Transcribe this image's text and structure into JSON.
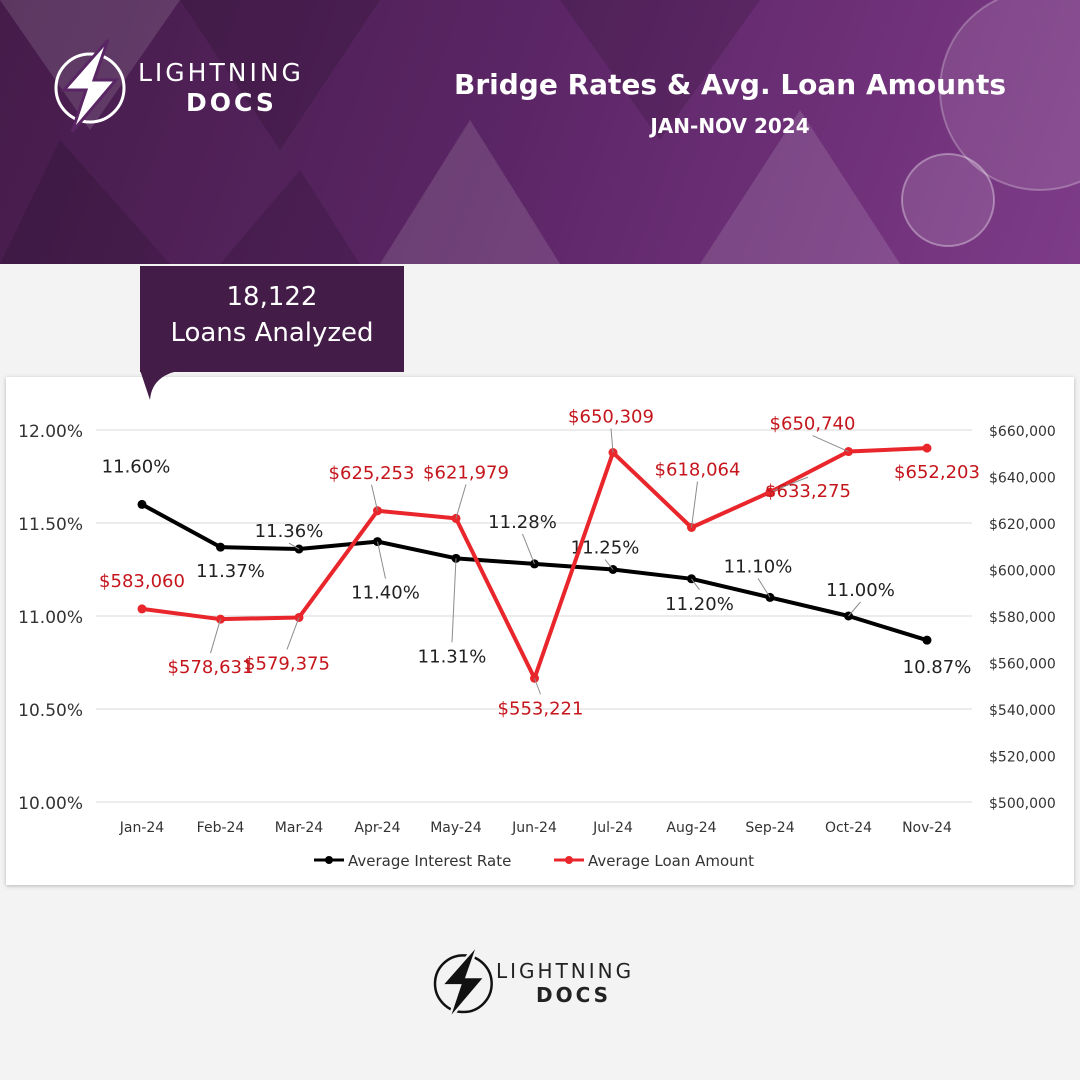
{
  "brand": {
    "logo_line1": "LIGHTNING",
    "logo_line2": "DOCS",
    "logo_icon": "lightning-bolt-icon",
    "header_colors": [
      "#451c4a",
      "#7e3c88"
    ]
  },
  "header": {
    "title": "Bridge Rates & Avg. Loan Amounts",
    "subtitle": "JAN-NOV 2024"
  },
  "summary": {
    "count": "18,122",
    "label": "Loans Analyzed"
  },
  "chart_data": {
    "type": "line",
    "categories": [
      "Jan-24",
      "Feb-24",
      "Mar-24",
      "Apr-24",
      "May-24",
      "Jun-24",
      "Jul-24",
      "Aug-24",
      "Sep-24",
      "Oct-24",
      "Nov-24"
    ],
    "series": [
      {
        "name": "Average Interest Rate",
        "axis": "left",
        "color": "#000000",
        "values": [
          11.6,
          11.37,
          11.36,
          11.4,
          11.31,
          11.28,
          11.25,
          11.2,
          11.1,
          11.0,
          10.87
        ],
        "labels": [
          "11.60%",
          "11.37%",
          "11.36%",
          "11.40%",
          "11.31%",
          "11.28%",
          "11.25%",
          "11.20%",
          "11.10%",
          "11.00%",
          "10.87%"
        ]
      },
      {
        "name": "Average Loan Amount",
        "axis": "right",
        "color": "#e8262b",
        "values": [
          583060,
          578631,
          579375,
          625253,
          621979,
          553221,
          650309,
          618064,
          633275,
          650740,
          652203
        ],
        "labels": [
          "$583,060",
          "$578,631",
          "$579,375",
          "$625,253",
          "$621,979",
          "$553,221",
          "$650,309",
          "$618,064",
          "$633,275",
          "$650,740",
          "$652,203"
        ]
      }
    ],
    "y_left": {
      "lim": [
        10.0,
        12.0
      ],
      "ticks": [
        10.0,
        10.5,
        11.0,
        11.5,
        12.0
      ],
      "tick_labels": [
        "10.00%",
        "10.50%",
        "11.00%",
        "11.50%",
        "12.00%"
      ]
    },
    "y_right": {
      "lim": [
        500000,
        660000
      ],
      "ticks": [
        500000,
        520000,
        540000,
        560000,
        580000,
        600000,
        620000,
        640000,
        660000
      ],
      "tick_labels": [
        "$500,000",
        "$520,000",
        "$540,000",
        "$560,000",
        "$580,000",
        "$600,000",
        "$620,000",
        "$640,000",
        "$660,000"
      ]
    },
    "grid": true,
    "legend": "bottom",
    "label_color": "#c4161c"
  }
}
